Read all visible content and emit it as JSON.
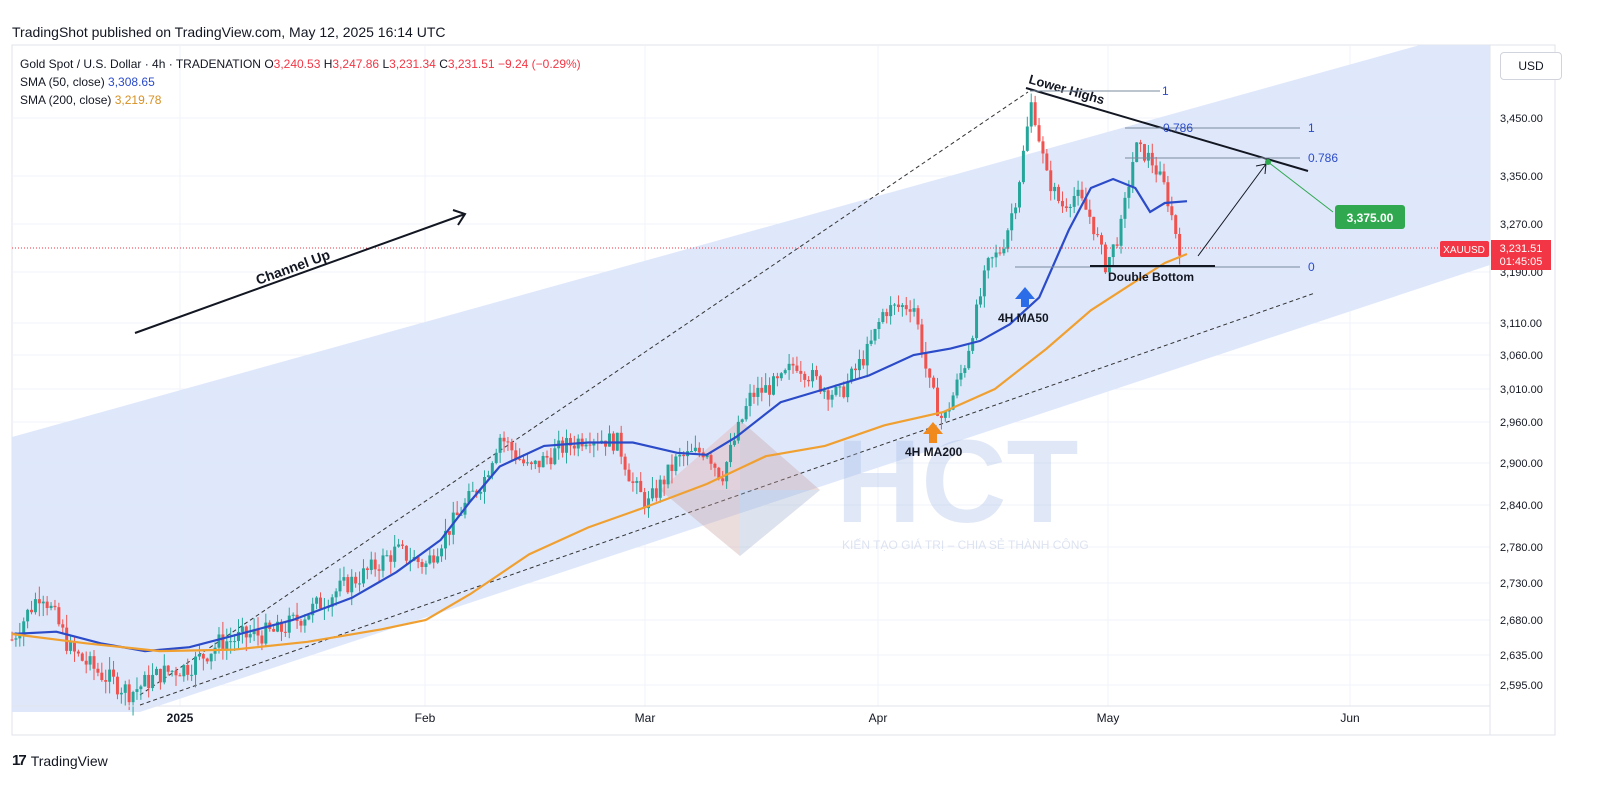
{
  "header": {
    "published": "TradingShot published on TradingView.com, May 12, 2025 16:14 UTC"
  },
  "legend": {
    "symbol_line": "Gold Spot / U.S. Dollar · 4h · TRADENATION",
    "o_label": "O",
    "o_value": "3,240.53",
    "h_label": "H",
    "h_value": "3,247.86",
    "l_label": "L",
    "l_value": "3,231.34",
    "c_label": "C",
    "c_value": "3,231.51",
    "change": "−9.24 (−0.29%)",
    "sma50_label": "SMA (50, close)",
    "sma50_value": "3,308.65",
    "sma200_label": "SMA (200, close)",
    "sma200_value": "3,219.78"
  },
  "price_axis": {
    "currency": "USD"
  },
  "footer": {
    "brand": "TradingView"
  },
  "watermark": {
    "logo_text": "HCT",
    "tagline": "KIẾN TẠO GIÁ TRỊ – CHIA SẺ THÀNH CÔNG"
  },
  "colors": {
    "sma50": "#2b4bc8",
    "sma200": "#f0a030",
    "channel_fill": "#dce6fb",
    "target_green": "#2fa84f",
    "price_red": "#f23645",
    "candle_green": "#26a69a",
    "candle_red": "#ef5350"
  },
  "chart_data": {
    "type": "line",
    "title": "",
    "symbol": "XAUUSD",
    "ylim": [
      2560,
      3520
    ],
    "y_ticks": [
      2595,
      2635,
      2680,
      2730,
      2780,
      2840,
      2900,
      2960,
      3010,
      3060,
      3110,
      3190,
      3270,
      3350,
      3450
    ],
    "y_tick_labels": [
      "2,595.00",
      "2,635.00",
      "2,680.00",
      "2,730.00",
      "2,780.00",
      "2,840.00",
      "2,900.00",
      "2,960.00",
      "3,010.00",
      "3,060.00",
      "3,110.00",
      "3,190.00",
      "3,270.00",
      "3,350.00",
      "3,450.00"
    ],
    "x_tick_labels": [
      "2025",
      "Feb",
      "Mar",
      "Apr",
      "May",
      "Jun"
    ],
    "grid": true,
    "current_price": 3231.51,
    "current_price_label": "3,231.51",
    "countdown": "01:45:05",
    "series": [
      {
        "name": "SMA (50, close)",
        "points": [
          [
            0,
            2662
          ],
          [
            0.03,
            2665
          ],
          [
            0.06,
            2650
          ],
          [
            0.09,
            2640
          ],
          [
            0.12,
            2645
          ],
          [
            0.15,
            2660
          ],
          [
            0.19,
            2680
          ],
          [
            0.23,
            2710
          ],
          [
            0.26,
            2745
          ],
          [
            0.29,
            2790
          ],
          [
            0.31,
            2845
          ],
          [
            0.33,
            2895
          ],
          [
            0.36,
            2925
          ],
          [
            0.39,
            2930
          ],
          [
            0.42,
            2930
          ],
          [
            0.45,
            2915
          ],
          [
            0.47,
            2912
          ],
          [
            0.49,
            2938
          ],
          [
            0.52,
            2990
          ],
          [
            0.55,
            3010
          ],
          [
            0.58,
            3030
          ],
          [
            0.61,
            3060
          ],
          [
            0.635,
            3070
          ],
          [
            0.655,
            3082
          ],
          [
            0.675,
            3108
          ],
          [
            0.695,
            3150
          ],
          [
            0.715,
            3260
          ],
          [
            0.73,
            3330
          ],
          [
            0.745,
            3345
          ],
          [
            0.76,
            3330
          ],
          [
            0.77,
            3290
          ],
          [
            0.78,
            3305
          ],
          [
            0.795,
            3308
          ]
        ]
      },
      {
        "name": "SMA (200, close)",
        "points": [
          [
            0,
            2662
          ],
          [
            0.05,
            2650
          ],
          [
            0.1,
            2640
          ],
          [
            0.15,
            2642
          ],
          [
            0.2,
            2652
          ],
          [
            0.25,
            2668
          ],
          [
            0.28,
            2680
          ],
          [
            0.31,
            2715
          ],
          [
            0.35,
            2770
          ],
          [
            0.39,
            2808
          ],
          [
            0.43,
            2838
          ],
          [
            0.47,
            2870
          ],
          [
            0.51,
            2910
          ],
          [
            0.55,
            2925
          ],
          [
            0.59,
            2955
          ],
          [
            0.63,
            2975
          ],
          [
            0.665,
            3010
          ],
          [
            0.7,
            3070
          ],
          [
            0.73,
            3130
          ],
          [
            0.76,
            3175
          ],
          [
            0.78,
            3205
          ],
          [
            0.795,
            3220
          ]
        ]
      }
    ],
    "candles_price": [
      [
        0,
        2655
      ],
      [
        0.02,
        2720
      ],
      [
        0.04,
        2640
      ],
      [
        0.06,
        2610
      ],
      [
        0.08,
        2585
      ],
      [
        0.1,
        2610
      ],
      [
        0.12,
        2620
      ],
      [
        0.14,
        2650
      ],
      [
        0.16,
        2660
      ],
      [
        0.18,
        2665
      ],
      [
        0.2,
        2690
      ],
      [
        0.22,
        2720
      ],
      [
        0.24,
        2745
      ],
      [
        0.26,
        2775
      ],
      [
        0.28,
        2755
      ],
      [
        0.3,
        2820
      ],
      [
        0.32,
        2880
      ],
      [
        0.33,
        2940
      ],
      [
        0.35,
        2890
      ],
      [
        0.37,
        2920
      ],
      [
        0.39,
        2940
      ],
      [
        0.41,
        2930
      ],
      [
        0.42,
        2870
      ],
      [
        0.43,
        2840
      ],
      [
        0.45,
        2905
      ],
      [
        0.47,
        2920
      ],
      [
        0.48,
        2880
      ],
      [
        0.49,
        2940
      ],
      [
        0.5,
        3000
      ],
      [
        0.52,
        3020
      ],
      [
        0.53,
        3050
      ],
      [
        0.55,
        3010
      ],
      [
        0.56,
        3000
      ],
      [
        0.58,
        3070
      ],
      [
        0.59,
        3130
      ],
      [
        0.61,
        3140
      ],
      [
        0.62,
        3020
      ],
      [
        0.63,
        2960
      ],
      [
        0.645,
        3050
      ],
      [
        0.66,
        3200
      ],
      [
        0.67,
        3230
      ],
      [
        0.68,
        3320
      ],
      [
        0.69,
        3480
      ],
      [
        0.7,
        3350
      ],
      [
        0.71,
        3300
      ],
      [
        0.72,
        3320
      ],
      [
        0.73,
        3280
      ],
      [
        0.74,
        3200
      ],
      [
        0.75,
        3260
      ],
      [
        0.76,
        3400
      ],
      [
        0.77,
        3380
      ],
      [
        0.78,
        3330
      ],
      [
        0.79,
        3231
      ]
    ],
    "annotations": [
      {
        "text": "Channel Up"
      },
      {
        "text": "Lower Highs"
      },
      {
        "text": "Double Bottom"
      },
      {
        "text": "4H MA50"
      },
      {
        "text": "4H MA200"
      },
      {
        "text": "3,375.00"
      }
    ],
    "fib_levels": [
      {
        "label": "1",
        "price": 3490
      },
      {
        "label": "0.786",
        "price": 3430
      },
      {
        "label": "1",
        "price": 3430
      },
      {
        "label": "0.786",
        "price": 3385
      },
      {
        "label": "0",
        "price": 3205
      }
    ]
  }
}
